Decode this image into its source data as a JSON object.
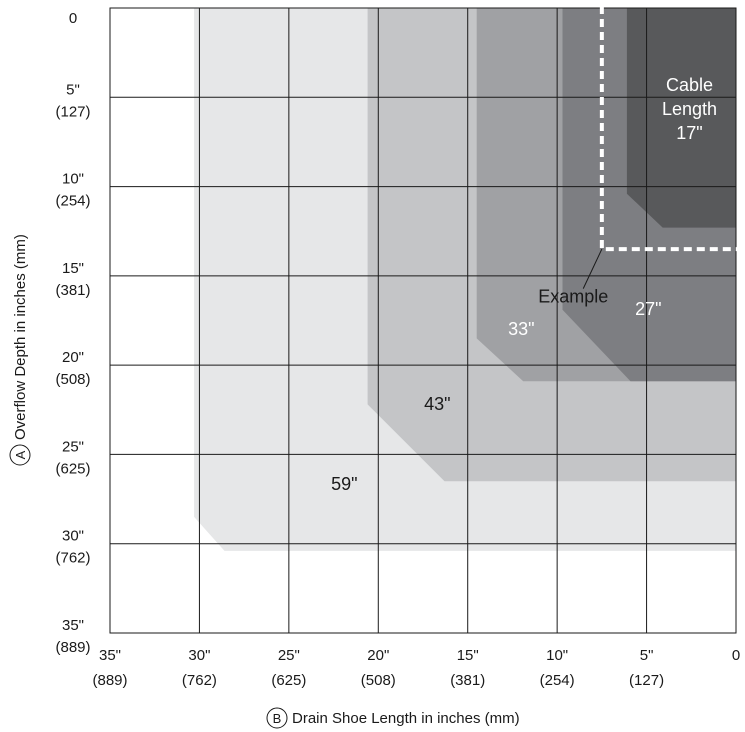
{
  "chart_data": {
    "type": "area",
    "title": "",
    "xlabel": "Drain Shoe Length in inches (mm)",
    "xlabel_marker": "B",
    "ylabel": "Overflow Depth in inches (mm)",
    "ylabel_marker": "A",
    "x_reversed": true,
    "y_reversed": true,
    "xlim": [
      0,
      35
    ],
    "ylim": [
      0,
      35
    ],
    "grid": true,
    "x_ticks": [
      {
        "value": 35,
        "label": "35\"",
        "sublabel": "(889)"
      },
      {
        "value": 30,
        "label": "30\"",
        "sublabel": "(762)"
      },
      {
        "value": 25,
        "label": "25\"",
        "sublabel": "(625)"
      },
      {
        "value": 20,
        "label": "20\"",
        "sublabel": "(508)"
      },
      {
        "value": 15,
        "label": "15\"",
        "sublabel": "(381)"
      },
      {
        "value": 10,
        "label": "10\"",
        "sublabel": "(254)"
      },
      {
        "value": 5,
        "label": "5\"",
        "sublabel": "(127)"
      },
      {
        "value": 0,
        "label": "0",
        "sublabel": ""
      }
    ],
    "y_ticks": [
      {
        "value": 0,
        "label": "0",
        "sublabel": ""
      },
      {
        "value": 5,
        "label": "5\"",
        "sublabel": "(127)"
      },
      {
        "value": 10,
        "label": "10\"",
        "sublabel": "(254)"
      },
      {
        "value": 15,
        "label": "15\"",
        "sublabel": "(381)"
      },
      {
        "value": 20,
        "label": "20\"",
        "sublabel": "(508)"
      },
      {
        "value": 25,
        "label": "25\"",
        "sublabel": "(625)"
      },
      {
        "value": 30,
        "label": "30\"",
        "sublabel": "(762)"
      },
      {
        "value": 35,
        "label": "35\"",
        "sublabel": "(889)"
      }
    ],
    "regions": [
      {
        "label": "59\"",
        "color": "#e6e7e8",
        "text_color": "#1a1a1a",
        "boundary": [
          [
            30.3,
            0
          ],
          [
            30.3,
            28.5
          ],
          [
            28.6,
            30.4
          ],
          [
            0,
            30.4
          ],
          [
            0,
            0
          ]
        ],
        "label_at": [
          21.9,
          27
        ]
      },
      {
        "label": "43\"",
        "color": "#c4c5c7",
        "text_color": "#1a1a1a",
        "boundary": [
          [
            20.6,
            0
          ],
          [
            20.6,
            22.2
          ],
          [
            16.3,
            26.5
          ],
          [
            0,
            26.5
          ],
          [
            0,
            0
          ]
        ],
        "label_at": [
          16.7,
          22.5
        ]
      },
      {
        "label": "33\"",
        "color": "#a0a1a4",
        "text_color": "#ffffff",
        "boundary": [
          [
            14.5,
            0
          ],
          [
            14.5,
            18.5
          ],
          [
            11.9,
            20.9
          ],
          [
            0,
            20.9
          ],
          [
            0,
            0
          ]
        ],
        "label_at": [
          12,
          18.3
        ]
      },
      {
        "label": "27\"",
        "color": "#7d7e82",
        "text_color": "#ffffff",
        "boundary": [
          [
            9.7,
            0
          ],
          [
            9.7,
            16.9
          ],
          [
            5.9,
            20.9
          ],
          [
            0,
            20.9
          ],
          [
            0,
            0
          ]
        ],
        "label_at": [
          4.9,
          17.2
        ]
      },
      {
        "label": "17\"",
        "label_lines": [
          "Cable",
          "Length",
          "17\""
        ],
        "color": "#58595b",
        "text_color": "#ffffff",
        "boundary": [
          [
            6.1,
            0
          ],
          [
            6.1,
            10.4
          ],
          [
            4.1,
            12.3
          ],
          [
            0,
            12.3
          ],
          [
            0,
            0
          ]
        ],
        "label_at": [
          2.6,
          6
        ]
      }
    ],
    "annotations": [
      {
        "label": "Example",
        "style": "dashed",
        "color": "#ffffff",
        "x": 7.5,
        "y": 13.5,
        "label_at": [
          9.1,
          16.5
        ]
      }
    ]
  }
}
